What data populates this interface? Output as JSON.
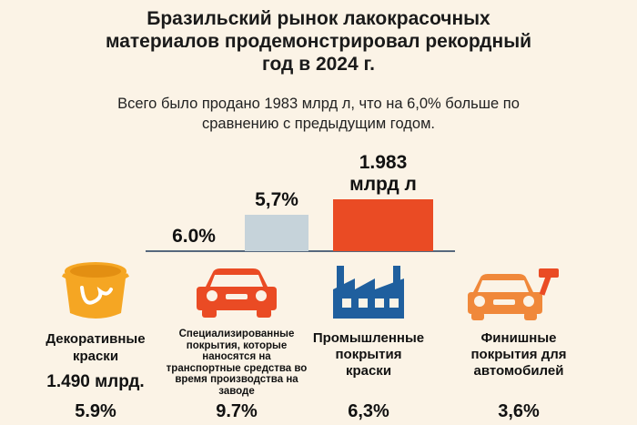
{
  "header": {
    "title_lines": [
      "Бразильский рынок лакокрасочных",
      "материалов продемонстрировал рекордный",
      "год в 2024 г."
    ],
    "subtitle_lines": [
      "Всего было продано 1983 млрд л, что на 6,0% больше по",
      "сравнению с предыдущим годом."
    ]
  },
  "chart_data": {
    "type": "bar",
    "categories": [
      "",
      "",
      ""
    ],
    "values": [
      0,
      0.4,
      0.57
    ],
    "data_labels": [
      "6.0%",
      "5,7%",
      "1.983\nмлрд л"
    ],
    "colors": [
      "#fbf3e6",
      "#c6d3da",
      "#ea4b24"
    ]
  },
  "categories": [
    {
      "icon": "paint-bucket-icon",
      "label_lines": [
        "Декоративные",
        "краски"
      ],
      "amount": "1.490 млрд.",
      "percent": "5.9%"
    },
    {
      "icon": "car-icon",
      "label_lines": [
        "Специализированные",
        "покрытия, которые",
        "наносятся на",
        "транспортные средства во",
        "время производства на",
        "заводе"
      ],
      "amount": "",
      "percent": "9.7%"
    },
    {
      "icon": "factory-icon",
      "label_lines": [
        "Промышленные",
        "покрытия",
        "краски"
      ],
      "amount": "",
      "percent": "6,3%"
    },
    {
      "icon": "car-hammer-icon",
      "label_lines": [
        "Финишные",
        "покрытия для",
        "автомобилей"
      ],
      "amount": "",
      "percent": "3,6%"
    }
  ],
  "colors": {
    "accent_orange": "#ea4b24",
    "bucket_orange": "#f5a623",
    "factory_blue": "#1f5f9e",
    "bar_grey": "#c6d3da",
    "background": "#fbf3e6"
  }
}
